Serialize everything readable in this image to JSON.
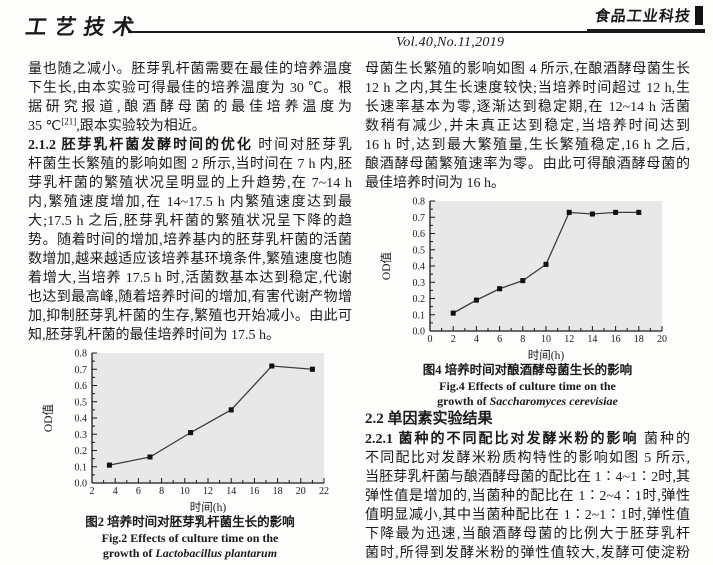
{
  "header": {
    "section_label": "工艺技术",
    "journal_logo": "食品工业科技",
    "volume": "Vol.40,No.11,2019"
  },
  "left_column": {
    "para1_lines": [
      "量也随之减小。胚芽乳杆菌需要在最佳的培养温度",
      "下生长,由本实验可得最佳的培养温度为 30 ℃。根",
      "据研究报道,酿酒酵母菌的最佳培养温度为",
      "35 ℃[21],跟本实验较为相近。"
    ],
    "para2_lines": [
      {
        "b": "2.1.2  胚芽乳杆菌发酵时间的优化",
        "t": "  时间对胚芽乳"
      },
      "杆菌生长繁殖的影响如图 2 所示,当时间在 7 h 内,胚",
      "芽乳杆菌的繁殖状况呈明显的上升趋势,在 7~14 h",
      "内,繁殖速度增加,在 14~17.5 h 内繁殖速度达到最",
      "大;17.5 h 之后,胚芽乳杆菌的繁殖状况呈下降的趋",
      "势。随着时间的增加,培养基内的胚芽乳杆菌的活菌",
      "数增加,越来越适应该培养基环境条件,繁殖速度也随",
      "着增大,当培养 17.5 h 时,活菌数基本达到稳定,代谢",
      "也达到最高峰,随着培养时间的增加,有害代谢产物增",
      "加,抑制胚芽乳杆菌的生存,繁殖也开始减小。由此可",
      "知,胚芽乳杆菌的最佳培养时间为 17.5 h。"
    ],
    "fig2_caption_cn": "图2  培养时间对胚芽乳杆菌生长的影响",
    "fig2_caption_en1": "Fig.2  Effects of culture time on the",
    "fig2_caption_en2_prefix": "growth of ",
    "fig2_caption_en2_species": "Lactobacillus plantarum"
  },
  "right_column": {
    "para1_lines": [
      "母菌生长繁殖的影响如图 4 所示,在酿酒酵母菌生长",
      "12 h 之内,其生长速度较快;当培养时间超过 12 h,生",
      "长速率基本为零,逐渐达到稳定期,在 12~14 h 活菌",
      "数稍有减少,并未真正达到稳定,当培养时间达到",
      "16 h 时,达到最大繁殖量,生长繁殖稳定,16 h 之后,",
      "酿酒酵母菌繁殖速率为零。由此可得酿酒酵母菌的",
      "最佳培养时间为 16 h。"
    ],
    "fig4_caption_cn": "图4  培养时间对酿酒酵母菌生长的影响",
    "fig4_caption_en1": "Fig.4  Effects of culture time on the",
    "fig4_caption_en2_prefix": "growth of ",
    "fig4_caption_en2_species": "Saccharomyces cerevisiae",
    "heading_22": "2.2  单因素实验结果",
    "para2_lines": [
      {
        "b": "2.2.1  菌种的不同配比对发酵米粉的影响",
        "t": "  菌种的"
      },
      "不同配比对发酵米粉质构特性的影响如图 5 所示,",
      "当胚芽乳杆菌与酿酒酵母菌的配比在 1∶4~1∶2时,其",
      "弹性值是增加的,当菌种的配比在 1∶2~4∶1时,弹性",
      "值明显减小,其中当菌种配比在 1∶2~1∶1时,弹性值",
      "下降最为迅速,当酿酒酵母菌的比例大于胚芽乳杆",
      "菌时,所得到发酵米粉的弹性值较大,发酵可使淀粉"
    ]
  },
  "colors": {
    "text": "#1a1a1a",
    "plot_background": "#e8e8e8",
    "line": "#3d3d3d",
    "marker": "#111111"
  },
  "chart_data": [
    {
      "type": "line",
      "title": "图2 培养时间对胚芽乳杆菌生长的影响",
      "xlabel": "时间(h)",
      "ylabel": "OD值",
      "x": [
        3.5,
        7,
        10.5,
        14,
        17.5,
        21
      ],
      "y": [
        0.11,
        0.16,
        0.31,
        0.45,
        0.72,
        0.7
      ],
      "xlim": [
        2,
        22
      ],
      "ylim": [
        0,
        0.8
      ],
      "xticks": [
        2,
        4,
        6,
        8,
        10,
        12,
        14,
        16,
        18,
        20,
        22
      ],
      "yticks": [
        0,
        0.1,
        0.2,
        0.3,
        0.4,
        0.5,
        0.6,
        0.7,
        0.8
      ],
      "err": 0.012,
      "marker": "square",
      "grid": false,
      "legend": false,
      "plot_bg": "#e8e8e8",
      "line_color": "#3d3d3d",
      "marker_color": "#111111"
    },
    {
      "type": "line",
      "title": "图4 培养时间对酿酒酵母菌生长的影响",
      "xlabel": "时间(h)",
      "ylabel": "OD值",
      "x": [
        2,
        4,
        6,
        8,
        10,
        12,
        14,
        16,
        18
      ],
      "y": [
        0.11,
        0.19,
        0.26,
        0.31,
        0.41,
        0.73,
        0.72,
        0.73,
        0.73
      ],
      "xlim": [
        0,
        20
      ],
      "ylim": [
        0,
        0.8
      ],
      "xticks": [
        0,
        2,
        4,
        6,
        8,
        10,
        12,
        14,
        16,
        18,
        20
      ],
      "yticks": [
        0,
        0.1,
        0.2,
        0.3,
        0.4,
        0.5,
        0.6,
        0.7,
        0.8
      ],
      "err": 0.012,
      "marker": "square",
      "grid": false,
      "legend": false,
      "plot_bg": "#e8e8e8",
      "line_color": "#3d3d3d",
      "marker_color": "#111111"
    }
  ]
}
